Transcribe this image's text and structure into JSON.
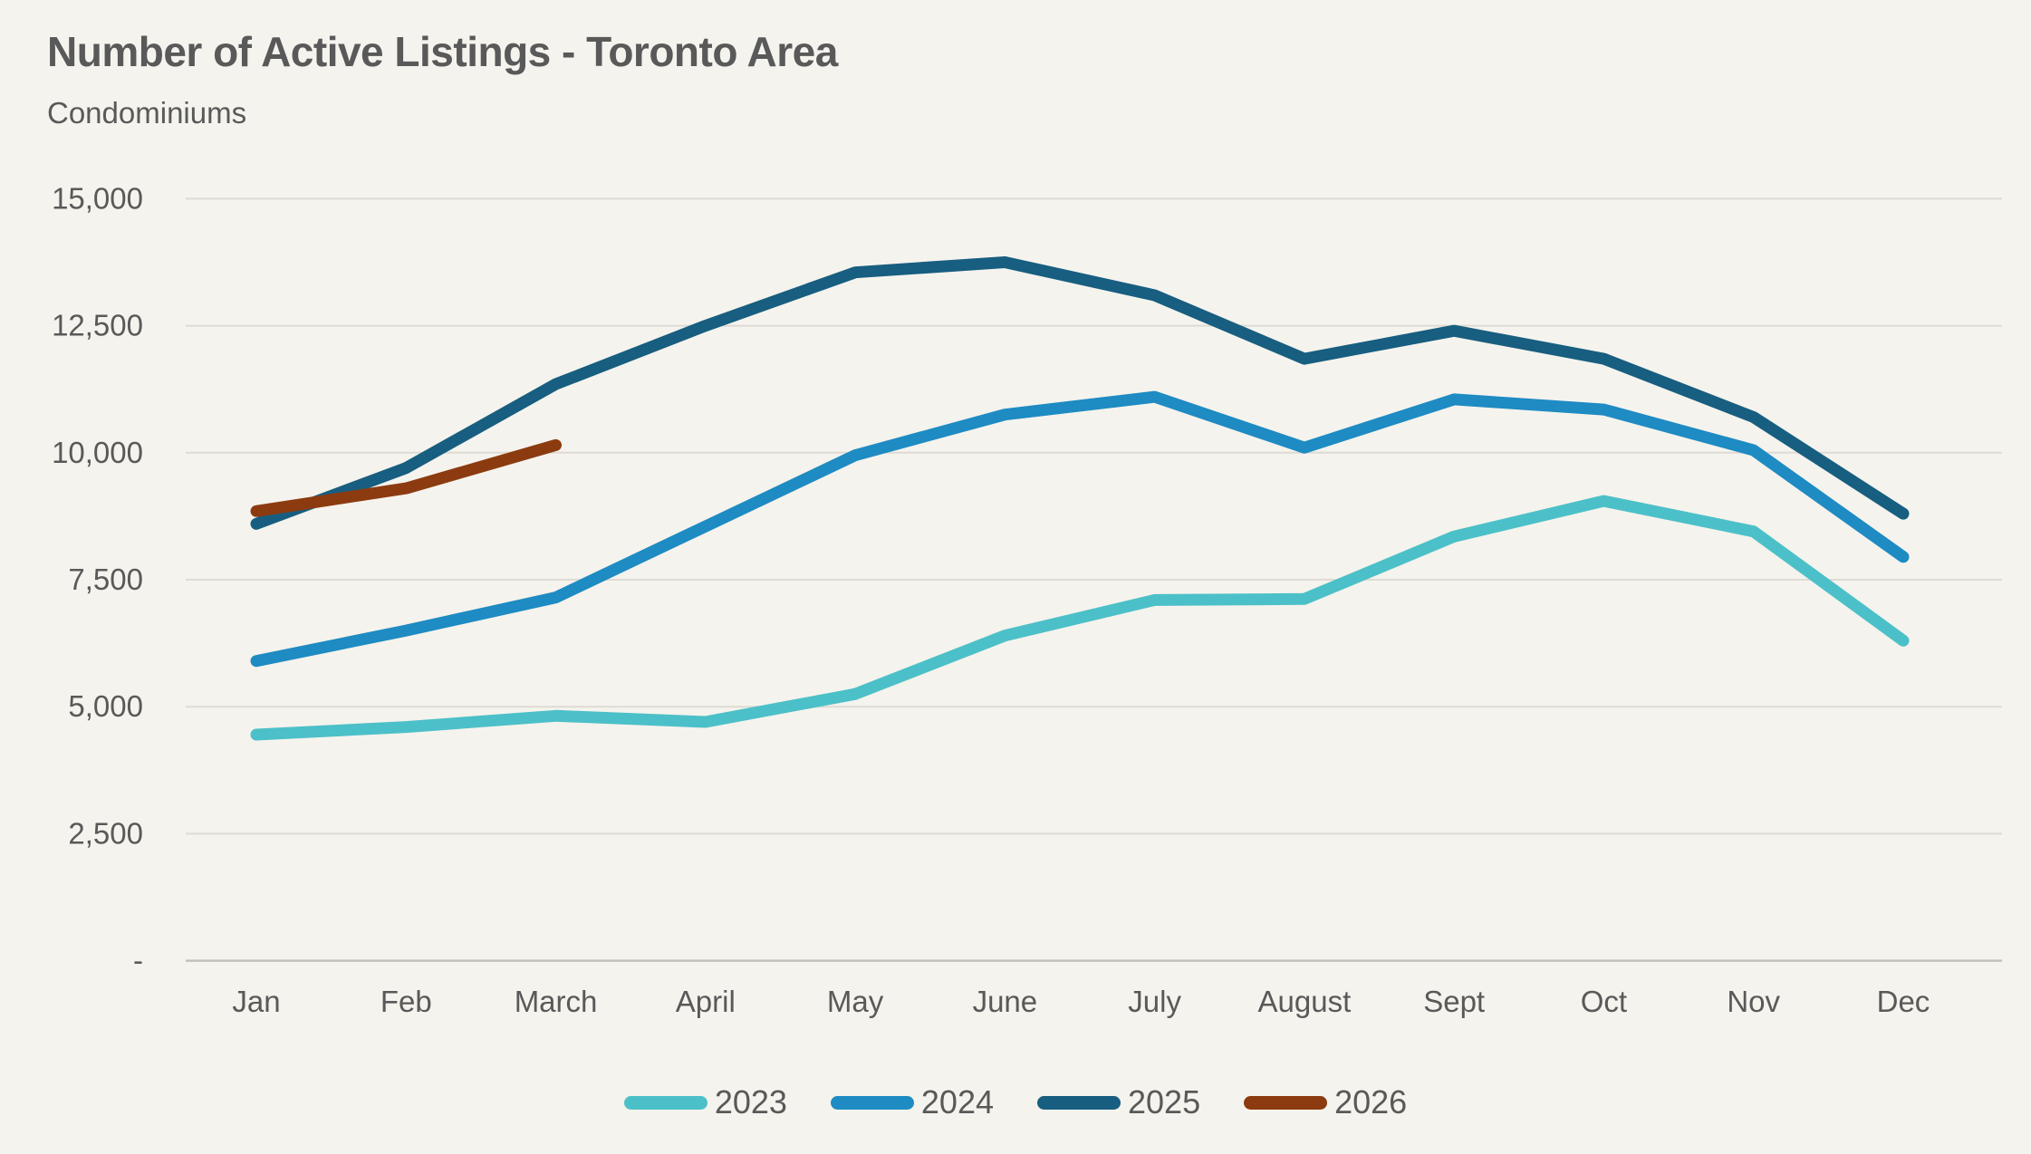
{
  "header": {
    "title": "Number of Active Listings - Toronto Area",
    "subtitle": "Condominiums"
  },
  "chart_data": {
    "type": "line",
    "title": "Number of Active Listings - Toronto Area",
    "subtitle": "Condominiums",
    "categories": [
      "Jan",
      "Feb",
      "March",
      "April",
      "May",
      "June",
      "July",
      "August",
      "Sept",
      "Oct",
      "Nov",
      "Dec"
    ],
    "y_ticks": [
      {
        "label": "15,000",
        "value": 15000
      },
      {
        "label": "12,500",
        "value": 12500
      },
      {
        "label": "10,000",
        "value": 10000
      },
      {
        "label": "7,500",
        "value": 7500
      },
      {
        "label": "5,000",
        "value": 5000
      },
      {
        "label": "2,500",
        "value": 2500
      },
      {
        "label": "-",
        "value": 0
      }
    ],
    "ylim": [
      0,
      15000
    ],
    "grid": "horizontal",
    "legend_position": "bottom",
    "series": [
      {
        "name": "2023",
        "color": "#4cc0c8",
        "values": [
          4450,
          4600,
          4820,
          4700,
          5250,
          6400,
          7100,
          7120,
          8350,
          9050,
          8450,
          6300
        ]
      },
      {
        "name": "2024",
        "color": "#1e8bc3",
        "values": [
          5900,
          6500,
          7150,
          8550,
          9950,
          10750,
          11100,
          10100,
          11050,
          10850,
          10050,
          7950
        ]
      },
      {
        "name": "2025",
        "color": "#175e80",
        "values": [
          8600,
          9700,
          11350,
          12500,
          13550,
          13750,
          13100,
          11850,
          12400,
          11850,
          10700,
          8800
        ]
      },
      {
        "name": "2026",
        "color": "#8c3b10",
        "values": [
          8850,
          9300,
          10150
        ]
      }
    ]
  }
}
